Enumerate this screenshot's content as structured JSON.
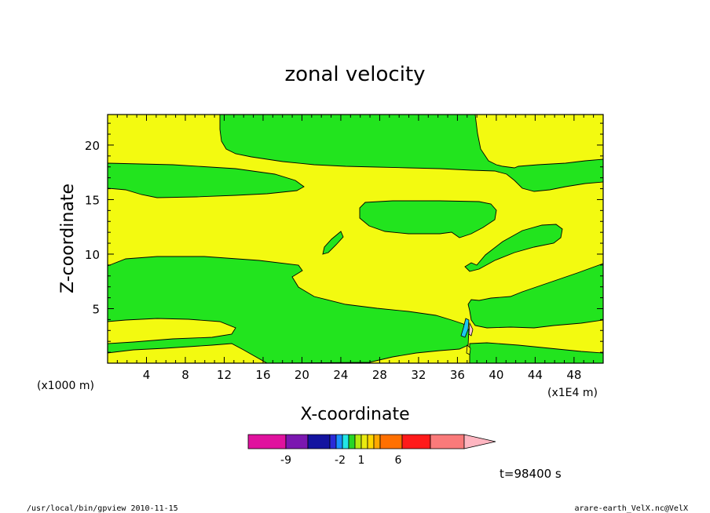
{
  "chart_data": {
    "type": "heatmap",
    "title": "zonal velocity",
    "xlabel": "X-coordinate",
    "ylabel": "Z-coordinate",
    "x_unit_label": "(x1E4 m)",
    "y_unit_label": "(x1000 m)",
    "xlim": [
      0,
      51
    ],
    "ylim": [
      0,
      22.8
    ],
    "x_ticks": [
      4,
      8,
      12,
      16,
      20,
      24,
      28,
      32,
      36,
      40,
      44,
      48
    ],
    "y_ticks": [
      5,
      10,
      15,
      20
    ],
    "grid": false,
    "regions_note": "",
    "colorbar": {
      "colors": [
        "#e0129e",
        "#7b17b0",
        "#1414a0",
        "#2a2ad8",
        "#1a90ff",
        "#22e6e6",
        "#26d626",
        "#b4ea10",
        "#eaea10",
        "#ffd700",
        "#ffa800",
        "#ff7000",
        "#ff1a1a",
        "#fa7a7a",
        "#ffb6c1"
      ],
      "tick_labels": [
        "-9",
        "-2",
        "1",
        "6"
      ]
    },
    "time_label": "t=98400 s"
  },
  "footer": {
    "left": "/usr/local/bin/gpview   2010-11-15",
    "right": "arare-earth_VelX.nc@VelX"
  },
  "colors": {
    "yellow": "#f3fa10",
    "green": "#22e41e",
    "cyan": "#1ec8f0",
    "pink": "#ffc0cb"
  }
}
